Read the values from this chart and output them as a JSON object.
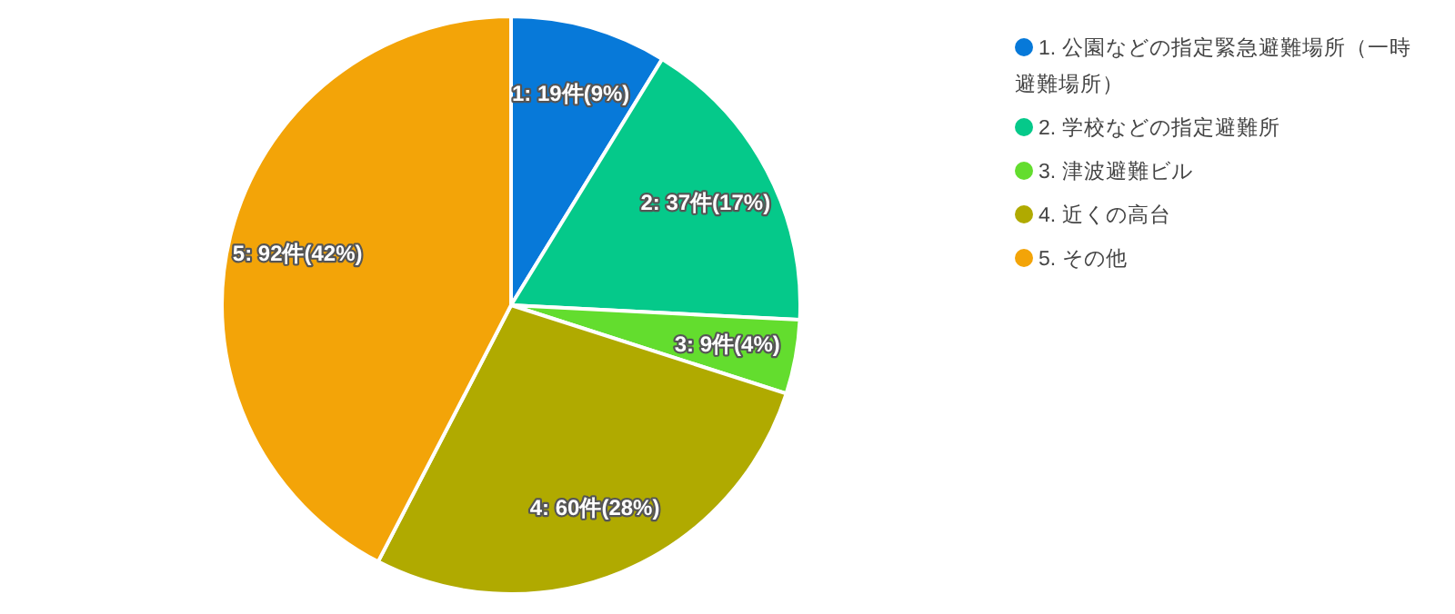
{
  "chart_data": {
    "type": "pie",
    "categories": [
      "1. 公園などの指定緊急避難場所（一時避難場所）",
      "2. 学校などの指定避難所",
      "3. 津波避難ビル",
      "4. 近くの高台",
      "5. その他"
    ],
    "values": [
      19,
      37,
      9,
      60,
      92
    ],
    "colors": [
      "#0779d9",
      "#05c98a",
      "#63dd2e",
      "#b0aa00",
      "#f3a408"
    ],
    "value_labels": [
      "1: 19件(9%)",
      "2: 37件(17%)",
      "3: 9件(4%)",
      "4: 60件(28%)",
      "5: 92件(42%)"
    ],
    "legend": "right"
  }
}
